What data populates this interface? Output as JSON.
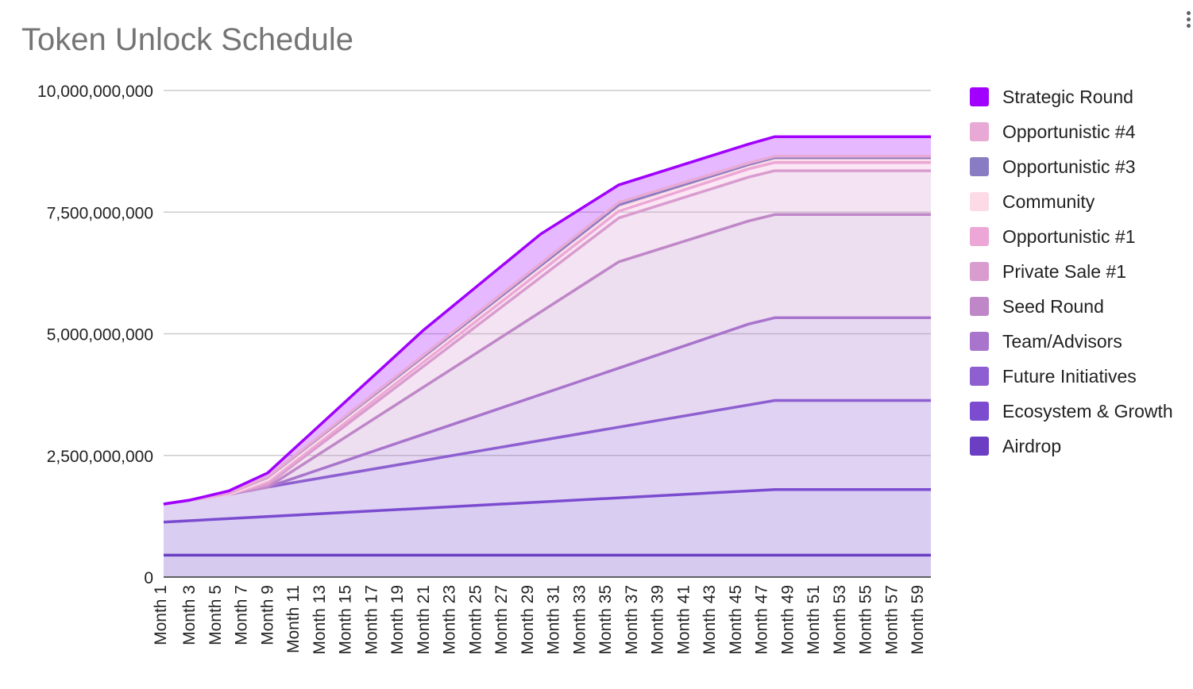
{
  "chart_data": {
    "type": "area",
    "stacked": true,
    "title": "Token Unlock Schedule",
    "xlabel": "",
    "ylabel": "",
    "ylim": [
      0,
      10000000000
    ],
    "yticks": [
      {
        "value": 0,
        "label": "0"
      },
      {
        "value": 2500000000,
        "label": "2,500,000,000"
      },
      {
        "value": 5000000000,
        "label": "5,000,000,000"
      },
      {
        "value": 7500000000,
        "label": "7,500,000,000"
      },
      {
        "value": 10000000000,
        "label": "10,000,000,000"
      }
    ],
    "x_range": [
      1,
      60
    ],
    "xtick_labels": [
      "Month 1",
      "Month 3",
      "Month 5",
      "Month 7",
      "Month 9",
      "Month 11",
      "Month 13",
      "Month 15",
      "Month 17",
      "Month 19",
      "Month 21",
      "Month 23",
      "Month 25",
      "Month 27",
      "Month 29",
      "Month 31",
      "Month 33",
      "Month 35",
      "Month 37",
      "Month 39",
      "Month 41",
      "Month 43",
      "Month 45",
      "Month 47",
      "Month 49",
      "Month 51",
      "Month 53",
      "Month 55",
      "Month 57",
      "Month 59"
    ],
    "grid": true,
    "legend_position": "right",
    "series": [
      {
        "name": "Airdrop",
        "color": "#6a3fc4",
        "points": [
          [
            1,
            450000000
          ],
          [
            60,
            450000000
          ]
        ]
      },
      {
        "name": "Ecosystem & Growth",
        "color": "#7b4bd0",
        "points": [
          [
            1,
            1130000000
          ],
          [
            48,
            1800000000
          ],
          [
            60,
            1800000000
          ]
        ]
      },
      {
        "name": "Future Initiatives",
        "color": "#8d5fd0",
        "points": [
          [
            1,
            1500000000
          ],
          [
            3,
            1580000000
          ],
          [
            6,
            1700000000
          ],
          [
            9,
            1850000000
          ],
          [
            48,
            3630000000
          ],
          [
            60,
            3630000000
          ]
        ]
      },
      {
        "name": "Team/Advisors",
        "color": "#a874cc",
        "points": [
          [
            1,
            1500000000
          ],
          [
            3,
            1580000000
          ],
          [
            6,
            1700000000
          ],
          [
            9,
            1850000000
          ],
          [
            46,
            5200000000
          ],
          [
            48,
            5330000000
          ],
          [
            60,
            5330000000
          ]
        ]
      },
      {
        "name": "Seed Round",
        "color": "#bf87c8",
        "points": [
          [
            1,
            1500000000
          ],
          [
            3,
            1580000000
          ],
          [
            6,
            1700000000
          ],
          [
            9,
            1850000000
          ],
          [
            36,
            6480000000
          ],
          [
            46,
            7320000000
          ],
          [
            48,
            7450000000
          ],
          [
            60,
            7450000000
          ]
        ]
      },
      {
        "name": "Private Sale #1",
        "color": "#d99ccf",
        "points": [
          [
            1,
            1500000000
          ],
          [
            3,
            1580000000
          ],
          [
            6,
            1700000000
          ],
          [
            9,
            1900000000
          ],
          [
            36,
            7380000000
          ],
          [
            46,
            8220000000
          ],
          [
            48,
            8350000000
          ],
          [
            60,
            8350000000
          ]
        ]
      },
      {
        "name": "Opportunistic #1",
        "color": "#eca7d6",
        "points": [
          [
            1,
            1500000000
          ],
          [
            3,
            1580000000
          ],
          [
            6,
            1700000000
          ],
          [
            9,
            1950000000
          ],
          [
            36,
            7520000000
          ],
          [
            46,
            8390000000
          ],
          [
            48,
            8520000000
          ],
          [
            60,
            8520000000
          ]
        ]
      },
      {
        "name": "Community",
        "color": "#fddbe6",
        "points": [
          [
            1,
            1500000000
          ],
          [
            3,
            1580000000
          ],
          [
            6,
            1700000000
          ],
          [
            9,
            2000000000
          ],
          [
            36,
            7600000000
          ],
          [
            46,
            8450000000
          ],
          [
            48,
            8580000000
          ],
          [
            60,
            8580000000
          ]
        ]
      },
      {
        "name": "Opportunistic #3",
        "color": "#8a7cc2",
        "points": [
          [
            1,
            1500000000
          ],
          [
            3,
            1580000000
          ],
          [
            6,
            1720000000
          ],
          [
            9,
            2050000000
          ],
          [
            36,
            7650000000
          ],
          [
            46,
            8480000000
          ],
          [
            48,
            8620000000
          ],
          [
            60,
            8620000000
          ]
        ]
      },
      {
        "name": "Opportunistic #4",
        "color": "#e8a9d4",
        "points": [
          [
            1,
            1500000000
          ],
          [
            3,
            1580000000
          ],
          [
            6,
            1720000000
          ],
          [
            9,
            2060000000
          ],
          [
            36,
            7700000000
          ],
          [
            46,
            8510000000
          ],
          [
            48,
            8650000000
          ],
          [
            60,
            8650000000
          ]
        ]
      },
      {
        "name": "Strategic Round",
        "color": "#a100ff",
        "points": [
          [
            1,
            1500000000
          ],
          [
            3,
            1580000000
          ],
          [
            6,
            1770000000
          ],
          [
            9,
            2140000000
          ],
          [
            21,
            5080000000
          ],
          [
            30,
            7050000000
          ],
          [
            36,
            8060000000
          ],
          [
            46,
            8900000000
          ],
          [
            48,
            9050000000
          ],
          [
            60,
            9050000000
          ]
        ]
      }
    ]
  },
  "legend": {
    "items": [
      {
        "label": "Strategic Round",
        "color": "#a100ff"
      },
      {
        "label": "Opportunistic #4",
        "color": "#e8a9d4"
      },
      {
        "label": "Opportunistic #3",
        "color": "#8a7cc2"
      },
      {
        "label": "Community",
        "color": "#fddbe6"
      },
      {
        "label": "Opportunistic #1",
        "color": "#eca7d6"
      },
      {
        "label": "Private Sale #1",
        "color": "#d99ccf"
      },
      {
        "label": "Seed Round",
        "color": "#bf87c8"
      },
      {
        "label": "Team/Advisors",
        "color": "#a874cc"
      },
      {
        "label": "Future Initiatives",
        "color": "#8d5fd0"
      },
      {
        "label": "Ecosystem & Growth",
        "color": "#7b4bd0"
      },
      {
        "label": "Airdrop",
        "color": "#6a3fc4"
      }
    ]
  },
  "menu": {
    "icon": "more-vert-icon"
  }
}
